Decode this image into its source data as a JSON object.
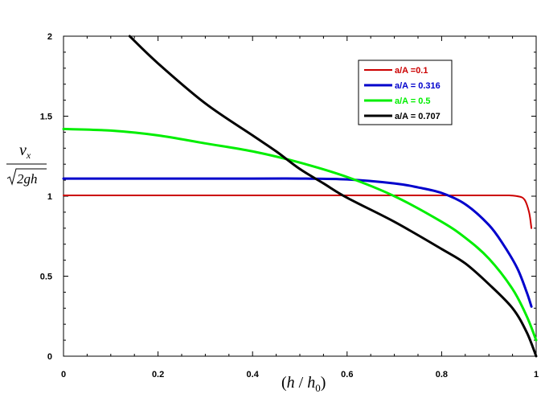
{
  "chart_data": {
    "type": "line",
    "title": "",
    "xlabel": {
      "open": "(",
      "h": "h",
      "slash": " / ",
      "h0": "h",
      "sub": "0",
      "close": ")"
    },
    "ylabel": {
      "numerator_v": "v",
      "numerator_sub": "x",
      "denominator": "2gh"
    },
    "xlim": [
      0,
      1
    ],
    "ylim": [
      0,
      2
    ],
    "x_ticks": [
      0,
      0.2,
      0.4,
      0.6,
      0.8,
      1
    ],
    "x_tick_labels": [
      "0",
      "0.2",
      "0.4",
      "0.6",
      "0.8",
      "1"
    ],
    "y_ticks": [
      0,
      0.5,
      1,
      1.5,
      2
    ],
    "y_tick_labels": [
      "0",
      "0.5",
      "1",
      "1.5",
      "2"
    ],
    "grid": false,
    "legend_position": "top-right",
    "series": [
      {
        "name": "a/A =0.1",
        "color": "#cc0000",
        "x": [
          0,
          0.2,
          0.4,
          0.6,
          0.8,
          0.9,
          0.94,
          0.96,
          0.975,
          0.985,
          0.99
        ],
        "y": [
          1.005,
          1.005,
          1.005,
          1.005,
          1.005,
          1.005,
          1.005,
          1.0,
          0.98,
          0.9,
          0.8
        ]
      },
      {
        "name": "a/A = 0.316",
        "color": "#0000cc",
        "x": [
          0,
          0.2,
          0.4,
          0.5,
          0.6,
          0.7,
          0.75,
          0.8,
          0.85,
          0.9,
          0.93,
          0.96,
          0.98,
          0.99
        ],
        "y": [
          1.11,
          1.11,
          1.11,
          1.11,
          1.105,
          1.08,
          1.055,
          1.02,
          0.95,
          0.82,
          0.7,
          0.55,
          0.4,
          0.31
        ]
      },
      {
        "name": "a/A = 0.5",
        "color": "#00ee00",
        "x": [
          0,
          0.1,
          0.2,
          0.3,
          0.4,
          0.5,
          0.6,
          0.7,
          0.8,
          0.85,
          0.9,
          0.95,
          0.98,
          1.0
        ],
        "y": [
          1.42,
          1.41,
          1.38,
          1.33,
          1.28,
          1.21,
          1.12,
          1.0,
          0.84,
          0.74,
          0.61,
          0.42,
          0.25,
          0.1
        ]
      },
      {
        "name": "a/A = 0.707",
        "color": "#000000",
        "x": [
          0.14,
          0.2,
          0.3,
          0.4,
          0.45,
          0.5,
          0.55,
          0.6,
          0.7,
          0.8,
          0.85,
          0.9,
          0.95,
          0.98,
          1.0
        ],
        "y": [
          2.0,
          1.83,
          1.58,
          1.38,
          1.28,
          1.17,
          1.08,
          0.99,
          0.84,
          0.67,
          0.58,
          0.45,
          0.3,
          0.15,
          0.0
        ]
      }
    ]
  }
}
